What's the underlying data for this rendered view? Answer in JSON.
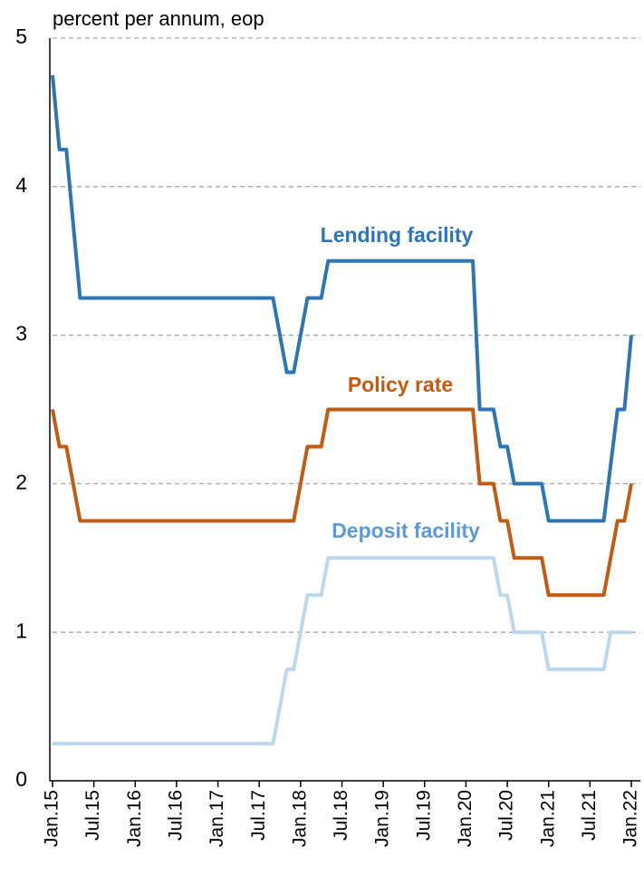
{
  "chart_data": {
    "type": "line",
    "y_label": "percent per annum, eop",
    "categories": [
      "Jan.15",
      null,
      null,
      null,
      null,
      null,
      "Jul.15",
      null,
      null,
      null,
      null,
      null,
      "Jan.16",
      null,
      null,
      null,
      null,
      null,
      "Jul.16",
      null,
      null,
      null,
      null,
      null,
      "Jan.17",
      null,
      null,
      null,
      null,
      null,
      "Jul.17",
      null,
      null,
      null,
      null,
      null,
      "Jan.18",
      null,
      null,
      null,
      null,
      null,
      "Jul.18",
      null,
      null,
      null,
      null,
      null,
      "Jan.19",
      null,
      null,
      null,
      null,
      null,
      "Jul.19",
      null,
      null,
      null,
      null,
      null,
      "Jan.20",
      null,
      null,
      null,
      null,
      null,
      "Jul.20",
      null,
      null,
      null,
      null,
      null,
      "Jan.21",
      null,
      null,
      null,
      null,
      null,
      "Jul.21",
      null,
      null,
      null,
      null,
      null,
      "Jan.22"
    ],
    "series": [
      {
        "name": "Lending facility",
        "color": "#2e75b6",
        "values": [
          4.75,
          4.25,
          4.25,
          3.75,
          3.25,
          3.25,
          3.25,
          3.25,
          3.25,
          3.25,
          3.25,
          3.25,
          3.25,
          3.25,
          3.25,
          3.25,
          3.25,
          3.25,
          3.25,
          3.25,
          3.25,
          3.25,
          3.25,
          3.25,
          3.25,
          3.25,
          3.25,
          3.25,
          3.25,
          3.25,
          3.25,
          3.25,
          3.25,
          3.0,
          2.75,
          2.75,
          3.0,
          3.25,
          3.25,
          3.25,
          3.5,
          3.5,
          3.5,
          3.5,
          3.5,
          3.5,
          3.5,
          3.5,
          3.5,
          3.5,
          3.5,
          3.5,
          3.5,
          3.5,
          3.5,
          3.5,
          3.5,
          3.5,
          3.5,
          3.5,
          3.5,
          3.5,
          2.5,
          2.5,
          2.5,
          2.25,
          2.25,
          2.0,
          2.0,
          2.0,
          2.0,
          2.0,
          1.75,
          1.75,
          1.75,
          1.75,
          1.75,
          1.75,
          1.75,
          1.75,
          1.75,
          2.125,
          2.5,
          2.5,
          3.0
        ]
      },
      {
        "name": "Policy rate",
        "color": "#c55a11",
        "values": [
          2.5,
          2.25,
          2.25,
          2.0,
          1.75,
          1.75,
          1.75,
          1.75,
          1.75,
          1.75,
          1.75,
          1.75,
          1.75,
          1.75,
          1.75,
          1.75,
          1.75,
          1.75,
          1.75,
          1.75,
          1.75,
          1.75,
          1.75,
          1.75,
          1.75,
          1.75,
          1.75,
          1.75,
          1.75,
          1.75,
          1.75,
          1.75,
          1.75,
          1.75,
          1.75,
          1.75,
          2.0,
          2.25,
          2.25,
          2.25,
          2.5,
          2.5,
          2.5,
          2.5,
          2.5,
          2.5,
          2.5,
          2.5,
          2.5,
          2.5,
          2.5,
          2.5,
          2.5,
          2.5,
          2.5,
          2.5,
          2.5,
          2.5,
          2.5,
          2.5,
          2.5,
          2.5,
          2.0,
          2.0,
          2.0,
          1.75,
          1.75,
          1.5,
          1.5,
          1.5,
          1.5,
          1.5,
          1.25,
          1.25,
          1.25,
          1.25,
          1.25,
          1.25,
          1.25,
          1.25,
          1.25,
          1.5,
          1.75,
          1.75,
          2.0
        ]
      },
      {
        "name": "Deposit facility",
        "color": "#bdd7ee",
        "values": [
          0.25,
          0.25,
          0.25,
          0.25,
          0.25,
          0.25,
          0.25,
          0.25,
          0.25,
          0.25,
          0.25,
          0.25,
          0.25,
          0.25,
          0.25,
          0.25,
          0.25,
          0.25,
          0.25,
          0.25,
          0.25,
          0.25,
          0.25,
          0.25,
          0.25,
          0.25,
          0.25,
          0.25,
          0.25,
          0.25,
          0.25,
          0.25,
          0.25,
          0.5,
          0.75,
          0.75,
          1.0,
          1.25,
          1.25,
          1.25,
          1.5,
          1.5,
          1.5,
          1.5,
          1.5,
          1.5,
          1.5,
          1.5,
          1.5,
          1.5,
          1.5,
          1.5,
          1.5,
          1.5,
          1.5,
          1.5,
          1.5,
          1.5,
          1.5,
          1.5,
          1.5,
          1.5,
          1.5,
          1.5,
          1.5,
          1.25,
          1.25,
          1.0,
          1.0,
          1.0,
          1.0,
          1.0,
          0.75,
          0.75,
          0.75,
          0.75,
          0.75,
          0.75,
          0.75,
          0.75,
          0.75,
          1.0,
          1.0,
          1.0,
          1.0
        ]
      }
    ],
    "ylim": [
      0,
      5
    ],
    "yticks": [
      0,
      1,
      2,
      3,
      4,
      5
    ],
    "grid": true
  }
}
